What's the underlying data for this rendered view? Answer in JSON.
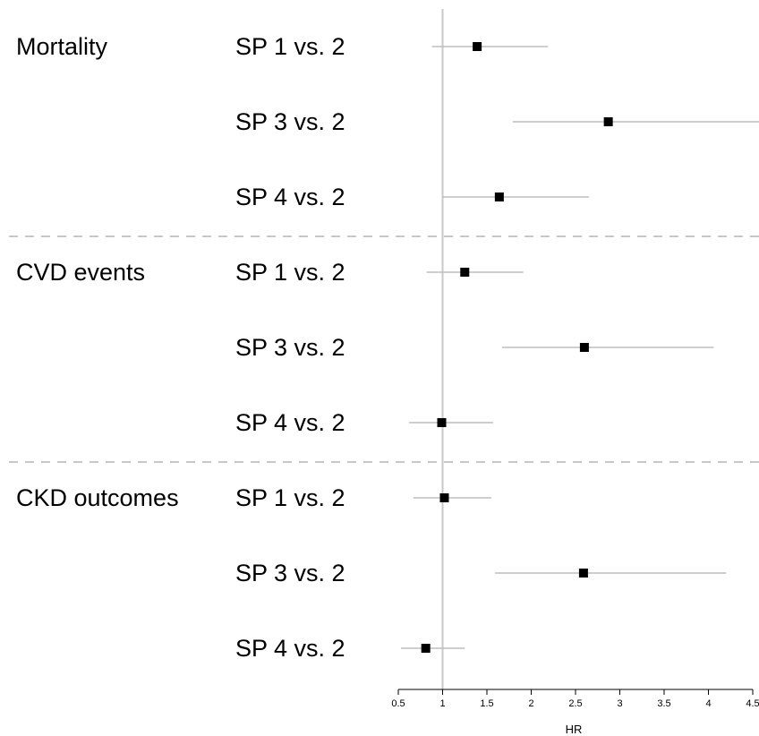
{
  "chart_data": {
    "type": "forest",
    "xlabel": "HR",
    "xlim": [
      0.5,
      4.5
    ],
    "xticks": [
      0.5,
      1,
      1.5,
      2,
      2.5,
      3,
      3.5,
      4,
      4.5
    ],
    "xtick_labels": [
      "0.5",
      "1",
      "1.5",
      "2",
      "2.5",
      "3",
      "3.5",
      "4",
      "4.5"
    ],
    "reference_line": 1,
    "groups": [
      {
        "name": "Mortality",
        "rows": [
          {
            "label": "SP 1 vs. 2",
            "hr": 1.39,
            "lower": 0.88,
            "upper": 2.19
          },
          {
            "label": "SP 3 vs. 2",
            "hr": 2.87,
            "lower": 1.79,
            "upper": 4.6
          },
          {
            "label": "SP 4 vs. 2",
            "hr": 1.64,
            "lower": 1.0,
            "upper": 2.65
          }
        ]
      },
      {
        "name": "CVD events",
        "rows": [
          {
            "label": "SP 1 vs. 2",
            "hr": 1.25,
            "lower": 0.82,
            "upper": 1.91
          },
          {
            "label": "SP 3 vs. 2",
            "hr": 2.6,
            "lower": 1.67,
            "upper": 4.06
          },
          {
            "label": "SP 4 vs. 2",
            "hr": 0.99,
            "lower": 0.62,
            "upper": 1.57
          }
        ]
      },
      {
        "name": "CKD outcomes",
        "rows": [
          {
            "label": "SP 1 vs. 2",
            "hr": 1.02,
            "lower": 0.67,
            "upper": 1.55
          },
          {
            "label": "SP 3 vs. 2",
            "hr": 2.59,
            "lower": 1.59,
            "upper": 4.2
          },
          {
            "label": "SP 4 vs. 2",
            "hr": 0.81,
            "lower": 0.53,
            "upper": 1.25
          }
        ]
      }
    ],
    "colors": {
      "marker": "#000000",
      "ci_line": "#bdbdbd",
      "reference_line": "#c8c8c8",
      "separator": "#c8c8c8",
      "axis": "#000000"
    },
    "grid": false
  }
}
